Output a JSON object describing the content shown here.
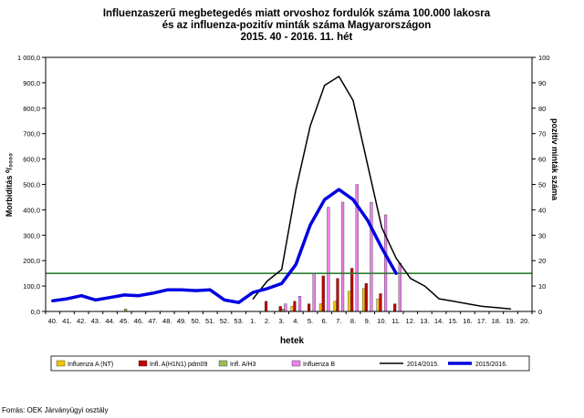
{
  "chart_data": {
    "type": "bar",
    "title_lines": [
      "Influenzaszerű megbetegedés miatt orvoshoz fordulók száma 100.000 lakosra",
      "és az influenza-pozitív minták száma Magyarországon",
      "2015. 40 - 2016. 11. hét"
    ],
    "xlabel": "hetek",
    "ylabel": "Morbiditás ⁰/₀₀₀₀",
    "y2label": "pozitív minták száma",
    "ylim": [
      0,
      1000
    ],
    "y2lim": [
      0,
      100
    ],
    "yticks": [
      "0,0",
      "100,0",
      "200,0",
      "300,0",
      "400,0",
      "500,0",
      "600,0",
      "700,0",
      "800,0",
      "900,0",
      "1 000,0"
    ],
    "y2ticks": [
      "0",
      "10",
      "20",
      "30",
      "40",
      "50",
      "60",
      "70",
      "80",
      "90",
      "100"
    ],
    "categories": [
      "40.",
      "41.",
      "42.",
      "43.",
      "44.",
      "45.",
      "46.",
      "47.",
      "48.",
      "49.",
      "50.",
      "51.",
      "52.",
      "53.",
      "1.",
      "2.",
      "3.",
      "4.",
      "5.",
      "6.",
      "7.",
      "8.",
      "9.",
      "10.",
      "11.",
      "12.",
      "13.",
      "14.",
      "15.",
      "16.",
      "17.",
      "18.",
      "19.",
      "20."
    ],
    "bar_series": [
      {
        "name": "Influenza A (NT)",
        "color": "#f5c400",
        "values": [
          0,
          0,
          0,
          0,
          0,
          0,
          0,
          0,
          0,
          0,
          0,
          0,
          0,
          0,
          0,
          0,
          0,
          2,
          0,
          3,
          4,
          8,
          9,
          5,
          0,
          0,
          0,
          0,
          0,
          0,
          0,
          0,
          0,
          0
        ]
      },
      {
        "name": "Infl. A(H1N1) pdm09",
        "color": "#c00000",
        "values": [
          0,
          0,
          0,
          0,
          0,
          0,
          0,
          0,
          0,
          0,
          0,
          0,
          0,
          0,
          0,
          4,
          2,
          4,
          3,
          14,
          13,
          17,
          11,
          7,
          3,
          0,
          0,
          0,
          0,
          0,
          0,
          0,
          0,
          0
        ]
      },
      {
        "name": "Infl. A/H3",
        "color": "#9bbb59",
        "values": [
          0,
          0,
          0,
          0,
          0,
          1,
          0,
          0,
          0,
          0,
          0,
          0,
          0,
          0,
          0,
          0,
          1,
          0,
          0,
          0,
          0,
          0,
          0,
          0,
          0,
          0,
          0,
          0,
          0,
          0,
          0,
          0,
          0,
          0
        ]
      },
      {
        "name": "Influenza B",
        "color": "#ee82ee",
        "values": [
          0,
          0,
          0,
          0,
          0,
          0,
          0,
          0,
          0,
          0,
          0,
          0,
          0,
          0,
          0,
          0,
          3,
          6,
          15,
          41,
          43,
          50,
          43,
          38,
          19,
          0,
          0,
          0,
          0,
          0,
          0,
          0,
          0,
          0
        ]
      }
    ],
    "line_series": [
      {
        "name": "2014/2015.",
        "color": "#000000",
        "width": 1.5,
        "values": [
          null,
          null,
          null,
          null,
          null,
          null,
          null,
          null,
          null,
          null,
          null,
          null,
          null,
          null,
          50,
          120,
          165,
          480,
          730,
          890,
          925,
          830,
          580,
          330,
          210,
          130,
          100,
          50,
          40,
          30,
          20,
          15,
          10,
          null
        ]
      },
      {
        "name": "2015/2016.",
        "color": "#0000e0",
        "width": 3.5,
        "values": [
          42,
          50,
          62,
          45,
          55,
          65,
          62,
          72,
          85,
          85,
          82,
          85,
          45,
          35,
          75,
          90,
          110,
          185,
          340,
          440,
          480,
          440,
          360,
          250,
          150,
          null,
          null,
          null,
          null,
          null,
          null,
          null,
          null,
          null
        ]
      }
    ],
    "threshold": {
      "value": 150,
      "color": "#2e7d32"
    },
    "legend_position": "bottom",
    "source": "Forrás: OEK Járványügyi osztály"
  }
}
